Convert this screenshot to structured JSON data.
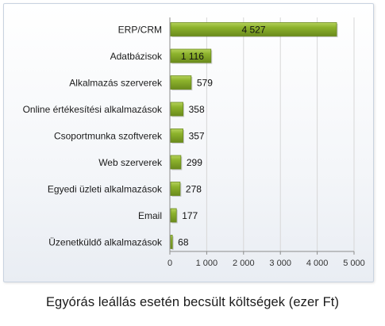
{
  "caption": "Egyórás leállás esetén becsült költségek (ezer Ft)",
  "colors": {
    "bar": "#8db32c",
    "bar_dark": "#6a8a1c",
    "bar_light": "#b6d25c",
    "axis": "#8c8c8c",
    "grid": "#d7d7d7"
  },
  "chart_data": {
    "type": "bar",
    "orientation": "horizontal",
    "title": "",
    "xlabel": "",
    "ylabel": "",
    "xlim": [
      0,
      5000
    ],
    "xticks": [
      0,
      1000,
      2000,
      3000,
      4000,
      5000
    ],
    "xtick_labels": [
      "0",
      "1 000",
      "2 000",
      "3 000",
      "4 000",
      "5 000"
    ],
    "grid": true,
    "legend": "none",
    "categories": [
      "ERP/CRM",
      "Adatbázisok",
      "Alkalmazás szerverek",
      "Online értékesítési alkalmazások",
      "Csoportmunka szoftverek",
      "Web szerverek",
      "Egyedi üzleti alkalmazások",
      "Email",
      "Üzenetküldő alkalmazások"
    ],
    "values": [
      4527,
      1116,
      579,
      358,
      357,
      299,
      278,
      177,
      68
    ],
    "value_labels": [
      "4 527",
      "1 116",
      "579",
      "358",
      "357",
      "299",
      "278",
      "177",
      "68"
    ]
  }
}
